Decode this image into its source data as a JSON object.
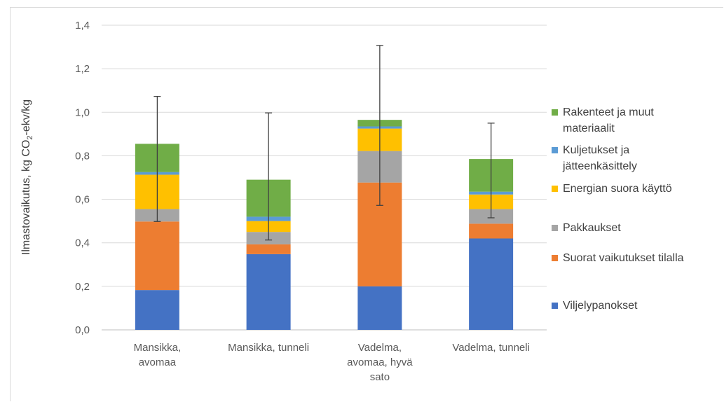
{
  "chart_data": {
    "type": "bar",
    "stacked": true,
    "ylabel": "Ilmastovaikutus, kg CO2-ekv/kg",
    "ylabel_parts": {
      "pre": "Ilmastovaikutus, kg CO",
      "sub": "2",
      "post": "-ekv/kg"
    },
    "ylim": [
      0,
      1.4
    ],
    "yticks": [
      "0,0",
      "0,2",
      "0,4",
      "0,6",
      "0,8",
      "1,0",
      "1,2",
      "1,4"
    ],
    "ytick_values": [
      0,
      0.2,
      0.4,
      0.6,
      0.8,
      1.0,
      1.2,
      1.4
    ],
    "grid": true,
    "legend_position": "right",
    "categories": [
      [
        "Mansikka,",
        "avomaa"
      ],
      [
        "Mansikka, tunneli"
      ],
      [
        "Vadelma,",
        "avomaa, hyvä",
        "sato"
      ],
      [
        "Vadelma, tunneli"
      ]
    ],
    "series": [
      {
        "name": "Viljelypanokset",
        "color": "#4472C4",
        "values": [
          0.183,
          0.348,
          0.2,
          0.42
        ]
      },
      {
        "name": "Suorat vaikutukset tilalla",
        "color": "#ED7D31",
        "values": [
          0.315,
          0.045,
          0.477,
          0.068
        ]
      },
      {
        "name": "Pakkaukset",
        "color": "#A5A5A5",
        "values": [
          0.057,
          0.057,
          0.145,
          0.067
        ]
      },
      {
        "name": "Energian suora käyttö",
        "color": "#FFC000",
        "values": [
          0.158,
          0.05,
          0.103,
          0.067
        ]
      },
      {
        "name": "Kuljetukset ja jätteenkäsittely",
        "color": "#5B9BD5",
        "values": [
          0.012,
          0.02,
          0.01,
          0.013
        ]
      },
      {
        "name": "Rakenteet ja muut materiaalit",
        "color": "#70AD47",
        "values": [
          0.13,
          0.17,
          0.03,
          0.15
        ]
      }
    ],
    "error_bars": [
      {
        "low": 0.498,
        "high": 1.073
      },
      {
        "low": 0.413,
        "high": 0.997
      },
      {
        "low": 0.572,
        "high": 1.307
      },
      {
        "low": 0.515,
        "high": 0.95
      }
    ],
    "legend": [
      {
        "lines": [
          "Rakenteet ja muut",
          "materiaalit"
        ],
        "color": "#70AD47"
      },
      {
        "lines": [
          "Kuljetukset ja",
          "jätteenkäsittely"
        ],
        "color": "#5B9BD5"
      },
      {
        "lines": [
          "Energian suora käyttö"
        ],
        "color": "#FFC000"
      },
      {
        "lines": [
          "Pakkaukset"
        ],
        "color": "#A5A5A5"
      },
      {
        "lines": [
          "Suorat vaikutukset tilalla"
        ],
        "color": "#ED7D31"
      },
      {
        "lines": [
          "Viljelypanokset"
        ],
        "color": "#4472C4"
      }
    ]
  }
}
